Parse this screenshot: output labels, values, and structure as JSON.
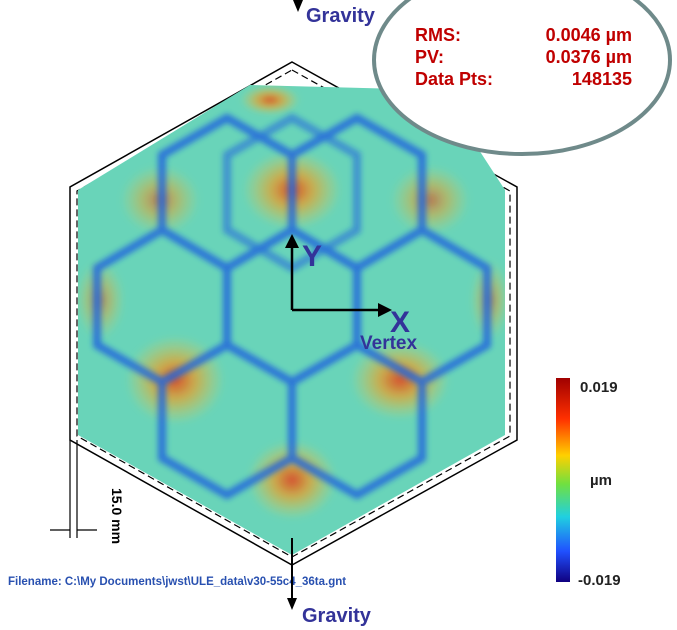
{
  "gravity_top": "Gravity",
  "stats": {
    "rows": [
      [
        "RMS:",
        "0.0046 µm"
      ],
      [
        "PV:",
        "0.0376 µm"
      ],
      [
        "Data Pts:",
        "148135"
      ]
    ]
  },
  "axes": {
    "y_label": "Y",
    "x_label": "X",
    "vertex_label": "Vertex"
  },
  "colorbar": {
    "max_label": "0.019",
    "unit": "µm",
    "min_label": "-0.019"
  },
  "dimension": "15.0 mm",
  "filename": "Filename: C:\\My Documents\\jwst\\ULE_data\\v30-55c4_36ta.gnt",
  "gravity_bottom": "Gravity"
}
